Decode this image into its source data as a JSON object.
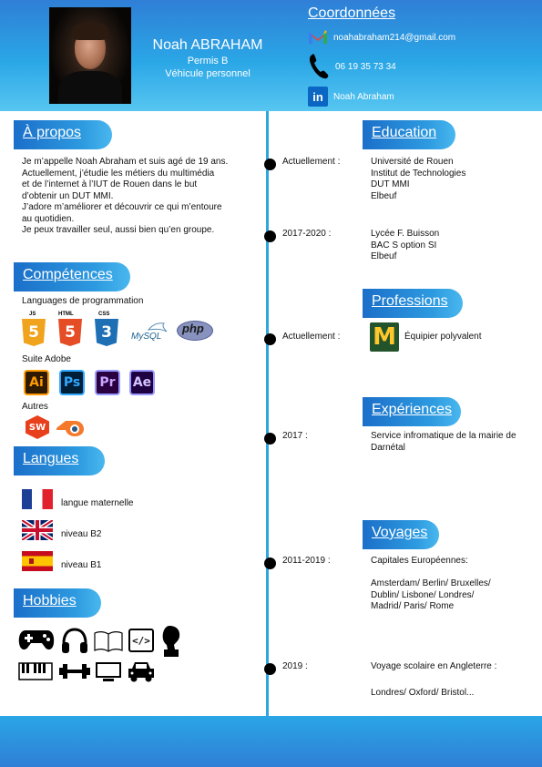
{
  "header": {
    "name": "Noah ABRAHAM",
    "line1": "Permis B",
    "line2": "Véhicule personnel"
  },
  "contact": {
    "title": "Coordonnées",
    "email": "noahabraham214@gmail.com",
    "phone": "06 19 35 73 34",
    "linkedin": "Noah Abraham",
    "linkedin_icon_text": "in"
  },
  "about": {
    "title": "À propos",
    "lines": [
      "Je m’appelle Noah Abraham et suis agé de 19 ans.",
      "Actuellement, j’étudie les métiers du multimédia",
      "et de l’internet à l’IUT de Rouen dans le but",
      "d’obtenir un DUT MMI.",
      "J’adore m’améliorer et découvrir ce qui m’entoure",
      "au quotidien.",
      "Je peux travailler seul, aussi bien qu’en groupe."
    ]
  },
  "skills": {
    "title": "Compétences",
    "programming_label": "Languages de programmation",
    "js_caption": "JS",
    "js_glyph": "5",
    "html_caption": "HTML",
    "html_glyph": "5",
    "css_caption": "CSS",
    "css_glyph": "3",
    "mysql": "MySQL",
    "php": "php",
    "adobe_label": "Suite Adobe",
    "ai": "Ai",
    "ps": "Ps",
    "pr": "Pr",
    "ae": "Ae",
    "others_label": "Autres",
    "sw": "SW"
  },
  "languages": {
    "title": "Langues",
    "items": [
      "langue maternelle",
      "niveau B2",
      "niveau B1"
    ]
  },
  "hobbies": {
    "title": "Hobbies",
    "code_icon_text": "</>"
  },
  "education": {
    "title": "Education",
    "entries": [
      {
        "date": "Actuellement :",
        "lines": [
          "Université de Rouen",
          "Institut de Technologies",
          "DUT MMI",
          "Elbeuf"
        ]
      },
      {
        "date": "2017-2020 :",
        "lines": [
          "Lycée F. Buisson",
          "BAC S option SI",
          "Elbeuf"
        ]
      }
    ]
  },
  "professions": {
    "title": "Professions",
    "date": "Actuellement :",
    "role": "Équipier polyvalent",
    "logo_letter": "M"
  },
  "experiences": {
    "title": "Expériences",
    "date": "2017 :",
    "lines": [
      "Service infromatique de la mairie de",
      "Darnétal"
    ]
  },
  "travels": {
    "title": "Voyages",
    "entries": [
      {
        "date": "2011-2019 :",
        "lines": [
          "Capitales Européennes:",
          "",
          "Amsterdam/ Berlin/ Bruxelles/",
          "Dublin/ Lisbone/ Londres/",
          "Madrid/ Paris/ Rome"
        ]
      },
      {
        "date": "2019 :",
        "lines": [
          "Voyage scolaire en Angleterre :",
          "",
          "Londres/ Oxford/ Bristol..."
        ]
      }
    ]
  },
  "colors": {
    "accent": "#2d9ae0",
    "header_top": "#2f7fd6",
    "timeline": "#2fa6e0"
  }
}
